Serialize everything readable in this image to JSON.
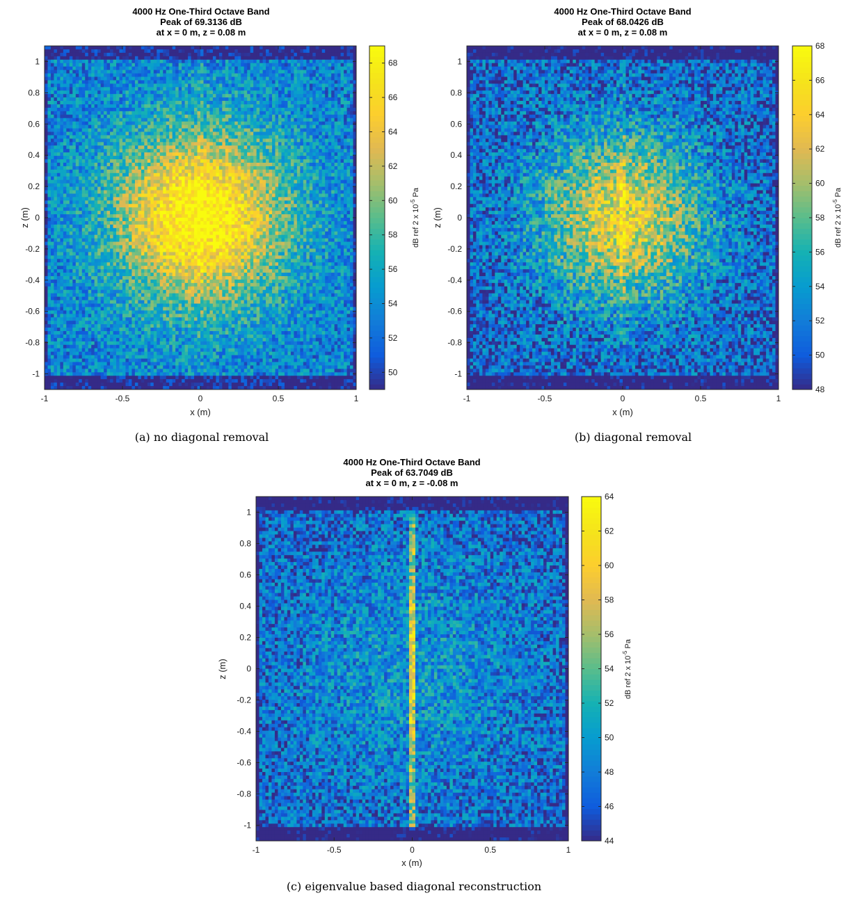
{
  "chart_data": [
    {
      "type": "heatmap",
      "title_lines": [
        "4000 Hz One-Third Octave Band",
        "Peak of 69.3136 dB",
        "at x = 0 m, z = 0.08 m"
      ],
      "xlabel": "x (m)",
      "ylabel": "z (m)",
      "xlim": [
        -1,
        1.0
      ],
      "ylim": [
        -1.1,
        1.1
      ],
      "xticks": [
        "-1",
        "-0.5",
        "0",
        "0.5",
        "1"
      ],
      "yticks": [
        "1",
        "0.8",
        "0.6",
        "0.4",
        "0.2",
        "0",
        "-0.2",
        "-0.4",
        "-0.6",
        "-0.8",
        "-1"
      ],
      "colorbar": {
        "label": "dB ref 2 x 10-5 Pa",
        "label_base": "dB ref 2 x 10",
        "label_exp": "-5",
        "label_unit": "Pa",
        "clim": [
          49,
          69
        ],
        "ticks": [
          "50",
          "52",
          "54",
          "56",
          "58",
          "60",
          "62",
          "64",
          "66",
          "68"
        ]
      },
      "colormap": "parula",
      "peak_db": 69.3136,
      "peak_location": {
        "x": 0,
        "z": 0.08
      },
      "caption": "(a) no diagonal removal"
    },
    {
      "type": "heatmap",
      "title_lines": [
        "4000 Hz One-Third Octave Band",
        "Peak of 68.0426 dB",
        "at x = 0 m, z = 0.08 m"
      ],
      "xlabel": "x (m)",
      "ylabel": "z (m)",
      "xlim": [
        -1,
        1.0
      ],
      "ylim": [
        -1.1,
        1.1
      ],
      "xticks": [
        "-1",
        "-0.5",
        "0",
        "0.5",
        "1"
      ],
      "yticks": [
        "1",
        "0.8",
        "0.6",
        "0.4",
        "0.2",
        "0",
        "-0.2",
        "-0.4",
        "-0.6",
        "-0.8",
        "-1"
      ],
      "colorbar": {
        "label": "dB ref 2 x 10-5 Pa",
        "label_base": "dB ref 2 x 10",
        "label_exp": "-5",
        "label_unit": "Pa",
        "clim": [
          48,
          68
        ],
        "ticks": [
          "48",
          "50",
          "52",
          "54",
          "56",
          "58",
          "60",
          "62",
          "64",
          "66",
          "68"
        ]
      },
      "colormap": "parula",
      "peak_db": 68.0426,
      "peak_location": {
        "x": 0,
        "z": 0.08
      },
      "caption": "(b) diagonal removal"
    },
    {
      "type": "heatmap",
      "title_lines": [
        "4000 Hz One-Third Octave Band",
        "Peak of 63.7049 dB",
        "at x = 0 m, z = -0.08 m"
      ],
      "xlabel": "x (m)",
      "ylabel": "z (m)",
      "xlim": [
        -1,
        1.0
      ],
      "ylim": [
        -1.1,
        1.1
      ],
      "xticks": [
        "-1",
        "-0.5",
        "0",
        "0.5",
        "1"
      ],
      "yticks": [
        "1",
        "0.8",
        "0.6",
        "0.4",
        "0.2",
        "0",
        "-0.2",
        "-0.4",
        "-0.6",
        "-0.8",
        "-1"
      ],
      "colorbar": {
        "label": "dB ref 2 x 10-5 Pa",
        "label_base": "dB ref 2 x 10",
        "label_exp": "-5",
        "label_unit": "Pa",
        "clim": [
          44,
          64
        ],
        "ticks": [
          "44",
          "46",
          "48",
          "50",
          "52",
          "54",
          "56",
          "58",
          "60",
          "62",
          "64"
        ]
      },
      "colormap": "parula",
      "peak_db": 63.7049,
      "peak_location": {
        "x": 0,
        "z": -0.08
      },
      "caption": "(c) eigenvalue based diagonal reconstruction"
    }
  ]
}
